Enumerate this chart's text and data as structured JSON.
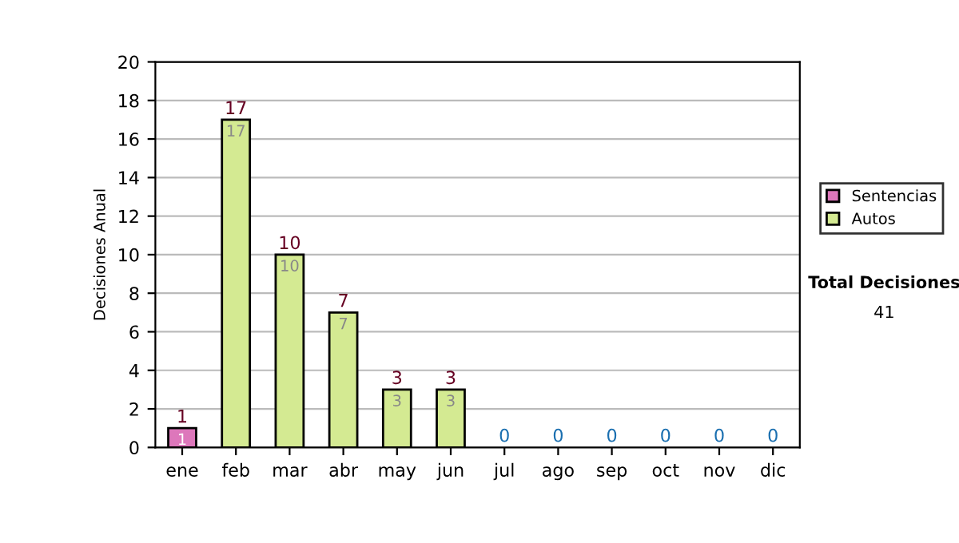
{
  "chart_data": {
    "type": "bar",
    "stacked": true,
    "ylabel": "Decisiones Anual",
    "categories": [
      "ene",
      "feb",
      "mar",
      "abr",
      "may",
      "jun",
      "jul",
      "ago",
      "sep",
      "oct",
      "nov",
      "dic"
    ],
    "series": [
      {
        "name": "Sentencias",
        "color": "#dd77bb",
        "values": [
          1,
          0,
          0,
          0,
          0,
          0,
          0,
          0,
          0,
          0,
          0,
          0
        ],
        "value_labels": [
          "1",
          null,
          null,
          null,
          null,
          null,
          null,
          null,
          null,
          null,
          null,
          null
        ]
      },
      {
        "name": "Autos",
        "color": "#d4ea92",
        "values": [
          0,
          17,
          10,
          7,
          3,
          3,
          0,
          0,
          0,
          0,
          0,
          0
        ],
        "value_labels": [
          null,
          "17",
          "10",
          "7",
          "3",
          "3",
          null,
          null,
          null,
          null,
          null,
          null
        ]
      }
    ],
    "totals": [
      "1",
      "17",
      "10",
      "7",
      "3",
      "3",
      "0",
      "0",
      "0",
      "0",
      "0",
      "0"
    ],
    "ylim": [
      0,
      20
    ],
    "yticks": [
      0,
      2,
      4,
      6,
      8,
      10,
      12,
      14,
      16,
      18,
      20
    ],
    "grid": "y",
    "legend": "right",
    "annotations": [
      "Total Decisiones",
      "41"
    ]
  }
}
